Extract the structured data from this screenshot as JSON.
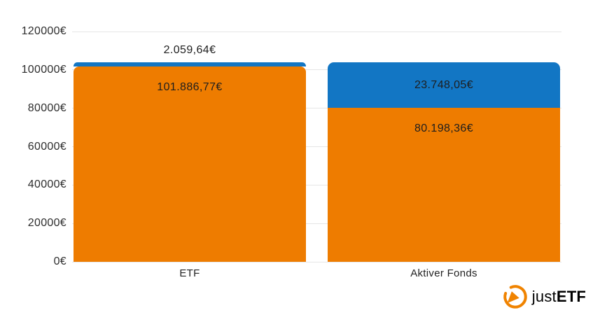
{
  "chart_data": {
    "type": "bar",
    "stacked": true,
    "title": "",
    "legend": "none",
    "grid": true,
    "grid_color": "#e6e6e6",
    "tick_color": "#2d2d2d",
    "value_label_color": "#1e1e1e",
    "category_label_color": "#222222",
    "categories": [
      "ETF",
      "Aktiver Fonds"
    ],
    "series": [
      {
        "id": "orange",
        "color": "#ee7c00",
        "values": [
          101886.77,
          80198.36
        ],
        "value_labels": [
          "101.886,77€",
          "80.198,36€"
        ],
        "label_placements": [
          "inside-top",
          "inside-top"
        ]
      },
      {
        "id": "blue",
        "color": "#1276c4",
        "values": [
          2059.64,
          23748.05
        ],
        "value_labels": [
          "2.059,64€",
          "23.748,05€"
        ],
        "label_placements": [
          "above",
          "inside-center"
        ]
      }
    ],
    "ylim": [
      0,
      120000
    ],
    "ytick_step": 20000,
    "ytick_labels": [
      "0€",
      "20000€",
      "40000€",
      "60000€",
      "80000€",
      "100000€",
      "120000€"
    ],
    "currency_suffix": "€"
  },
  "branding": {
    "logo_text_dark": "just",
    "logo_text_orange": "ETF",
    "logo_icon": "gauge-icon",
    "logo_orange": "#f08300",
    "logo_dark": "#33373e"
  }
}
